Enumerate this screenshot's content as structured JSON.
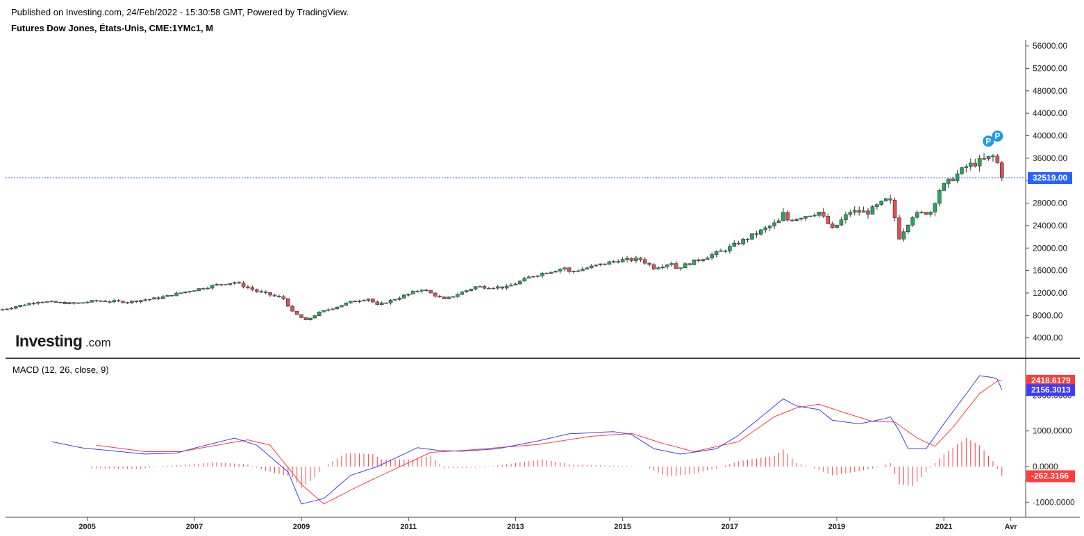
{
  "header": {
    "published": "Published on Investing.com, 24/Feb/2022 - 15:30:58 GMT, Powered by TradingView.",
    "subtitle": "Futures Dow Jones, États-Unis, CME:1YMc1, M"
  },
  "logo": {
    "brand": "Investing",
    "suffix": ".com"
  },
  "colors": {
    "up": "#26a65b",
    "down": "#e05151",
    "macd": "#3b3bff",
    "signal": "#ff3b3b",
    "last_price_badge": "#2962ff",
    "markers": "#2196f3"
  },
  "chart_data": [
    {
      "type": "candlestick",
      "title": "Futures Dow Jones, États-Unis, CME:1YMc1, M",
      "interval": "monthly",
      "ylim": [
        0,
        57500
      ],
      "y_ticks": [
        "56000.00",
        "52000.00",
        "48000.00",
        "44000.00",
        "40000.00",
        "36000.00",
        "32000.00",
        "28000.00",
        "24000.00",
        "20000.00",
        "16000.00",
        "12000.00",
        "8000.00",
        "4000.00"
      ],
      "x_ticks": [
        "2005",
        "2007",
        "2009",
        "2011",
        "2013",
        "2015",
        "2017",
        "2019",
        "2021",
        "Avr"
      ],
      "last_price": 32519,
      "last_price_label": "32519.00",
      "markers": [
        "P",
        "P"
      ],
      "anchors": [
        [
          "2003-06",
          9050
        ],
        [
          "2004-02",
          10500
        ],
        [
          "2004-10",
          10100
        ],
        [
          "2005-03",
          10600
        ],
        [
          "2005-10",
          10400
        ],
        [
          "2006-05",
          11100
        ],
        [
          "2006-12",
          12400
        ],
        [
          "2007-07",
          13600
        ],
        [
          "2007-10",
          13900
        ],
        [
          "2008-03",
          12300
        ],
        [
          "2008-09",
          11000
        ],
        [
          "2008-11",
          8600
        ],
        [
          "2009-02",
          7100
        ],
        [
          "2009-05",
          8500
        ],
        [
          "2009-12",
          10400
        ],
        [
          "2010-04",
          11000
        ],
        [
          "2010-06",
          9800
        ],
        [
          "2010-12",
          11500
        ],
        [
          "2011-04",
          12700
        ],
        [
          "2011-09",
          10800
        ],
        [
          "2012-04",
          13100
        ],
        [
          "2012-11",
          13000
        ],
        [
          "2013-05",
          15100
        ],
        [
          "2013-12",
          16500
        ],
        [
          "2014-01",
          15700
        ],
        [
          "2014-12",
          17800
        ],
        [
          "2015-05",
          18000
        ],
        [
          "2015-08",
          16500
        ],
        [
          "2015-12",
          17400
        ],
        [
          "2016-01",
          16400
        ],
        [
          "2016-12",
          19700
        ],
        [
          "2017-12",
          24700
        ],
        [
          "2018-01",
          26100
        ],
        [
          "2018-02",
          25000
        ],
        [
          "2018-09",
          26400
        ],
        [
          "2018-12",
          23300
        ],
        [
          "2019-04",
          26500
        ],
        [
          "2019-08",
          26400
        ],
        [
          "2019-12",
          28500
        ],
        [
          "2020-01",
          28200
        ],
        [
          "2020-02",
          25400
        ],
        [
          "2020-03",
          21900
        ],
        [
          "2020-06",
          25800
        ],
        [
          "2020-10",
          26500
        ],
        [
          "2020-12",
          30400
        ],
        [
          "2021-06",
          34500
        ],
        [
          "2021-12",
          36300
        ],
        [
          "2022-01",
          35100
        ],
        [
          "2022-02",
          32519
        ]
      ]
    },
    {
      "type": "line",
      "title": "MACD (12, 26, close, 9)",
      "ylim": [
        -1300,
        3000
      ],
      "y_ticks": [
        "2000.0000",
        "1000.0000",
        "0.0000",
        "-1000.0000"
      ],
      "series": [
        {
          "name": "MACD",
          "last_label": "2156.3013",
          "values": [
            [
              "2004-05",
              700
            ],
            [
              "2004-12",
              520
            ],
            [
              "2005-06",
              450
            ],
            [
              "2006-02",
              350
            ],
            [
              "2006-09",
              380
            ],
            [
              "2007-02",
              550
            ],
            [
              "2007-10",
              800
            ],
            [
              "2008-03",
              600
            ],
            [
              "2008-10",
              -150
            ],
            [
              "2009-01",
              -1050
            ],
            [
              "2009-06",
              -900
            ],
            [
              "2009-12",
              -250
            ],
            [
              "2010-06",
              0
            ],
            [
              "2011-03",
              530
            ],
            [
              "2011-08",
              450
            ],
            [
              "2012-01",
              430
            ],
            [
              "2012-09",
              500
            ],
            [
              "2013-06",
              720
            ],
            [
              "2014-01",
              920
            ],
            [
              "2014-11",
              980
            ],
            [
              "2015-03",
              900
            ],
            [
              "2015-08",
              500
            ],
            [
              "2016-02",
              350
            ],
            [
              "2016-10",
              500
            ],
            [
              "2017-03",
              880
            ],
            [
              "2017-12",
              1800
            ],
            [
              "2018-01",
              1900
            ],
            [
              "2018-04",
              1700
            ],
            [
              "2018-09",
              1600
            ],
            [
              "2018-12",
              1300
            ],
            [
              "2019-06",
              1200
            ],
            [
              "2019-12",
              1350
            ],
            [
              "2020-01",
              1400
            ],
            [
              "2020-03",
              1000
            ],
            [
              "2020-05",
              500
            ],
            [
              "2020-09",
              500
            ],
            [
              "2021-01",
              1200
            ],
            [
              "2021-09",
              2550
            ],
            [
              "2021-12",
              2500
            ],
            [
              "2022-01",
              2450
            ],
            [
              "2022-02",
              2156
            ]
          ]
        },
        {
          "name": "Signal",
          "last_label": "2418.6179",
          "values": [
            [
              "2005-03",
              600
            ],
            [
              "2006-02",
              420
            ],
            [
              "2006-10",
              420
            ],
            [
              "2007-06",
              600
            ],
            [
              "2008-01",
              750
            ],
            [
              "2008-06",
              600
            ],
            [
              "2009-01",
              -500
            ],
            [
              "2009-06",
              -1050
            ],
            [
              "2010-01",
              -600
            ],
            [
              "2010-06",
              -300
            ],
            [
              "2011-06",
              400
            ],
            [
              "2012-01",
              450
            ],
            [
              "2013-06",
              620
            ],
            [
              "2014-06",
              850
            ],
            [
              "2015-03",
              930
            ],
            [
              "2015-10",
              650
            ],
            [
              "2016-05",
              420
            ],
            [
              "2017-03",
              700
            ],
            [
              "2017-11",
              1400
            ],
            [
              "2018-04",
              1650
            ],
            [
              "2018-09",
              1750
            ],
            [
              "2019-03",
              1500
            ],
            [
              "2019-09",
              1270
            ],
            [
              "2020-02",
              1250
            ],
            [
              "2020-07",
              800
            ],
            [
              "2020-11",
              570
            ],
            [
              "2021-03",
              1100
            ],
            [
              "2021-09",
              2050
            ],
            [
              "2022-01",
              2400
            ],
            [
              "2022-02",
              2418.6
            ]
          ]
        },
        {
          "name": "Histogram",
          "last_label": "-262.3166",
          "values": [
            [
              "2005-02",
              -50
            ],
            [
              "2006-01",
              -60
            ],
            [
              "2006-06",
              10
            ],
            [
              "2007-06",
              120
            ],
            [
              "2008-01",
              60
            ],
            [
              "2008-05",
              -120
            ],
            [
              "2008-11",
              -300
            ],
            [
              "2009-01",
              -600
            ],
            [
              "2009-04",
              -300
            ],
            [
              "2009-06",
              0
            ],
            [
              "2009-11",
              380
            ],
            [
              "2010-05",
              350
            ],
            [
              "2010-07",
              200
            ],
            [
              "2011-02",
              200
            ],
            [
              "2011-06",
              300
            ],
            [
              "2011-09",
              -50
            ],
            [
              "2012-06",
              -20
            ],
            [
              "2013-01",
              100
            ],
            [
              "2013-07",
              200
            ],
            [
              "2014-02",
              50
            ],
            [
              "2014-08",
              30
            ],
            [
              "2015-06",
              0
            ],
            [
              "2015-11",
              -280
            ],
            [
              "2016-05",
              -200
            ],
            [
              "2016-10",
              -50
            ],
            [
              "2017-03",
              150
            ],
            [
              "2017-11",
              300
            ],
            [
              "2018-01",
              480
            ],
            [
              "2018-04",
              100
            ],
            [
              "2018-08",
              -50
            ],
            [
              "2018-12",
              -250
            ],
            [
              "2019-05",
              -150
            ],
            [
              "2019-11",
              0
            ],
            [
              "2020-01",
              100
            ],
            [
              "2020-03",
              -500
            ],
            [
              "2020-06",
              -550
            ],
            [
              "2020-08",
              -300
            ],
            [
              "2020-11",
              100
            ],
            [
              "2021-01",
              350
            ],
            [
              "2021-06",
              800
            ],
            [
              "2021-09",
              600
            ],
            [
              "2021-12",
              150
            ],
            [
              "2022-02",
              -262
            ]
          ]
        }
      ]
    }
  ]
}
